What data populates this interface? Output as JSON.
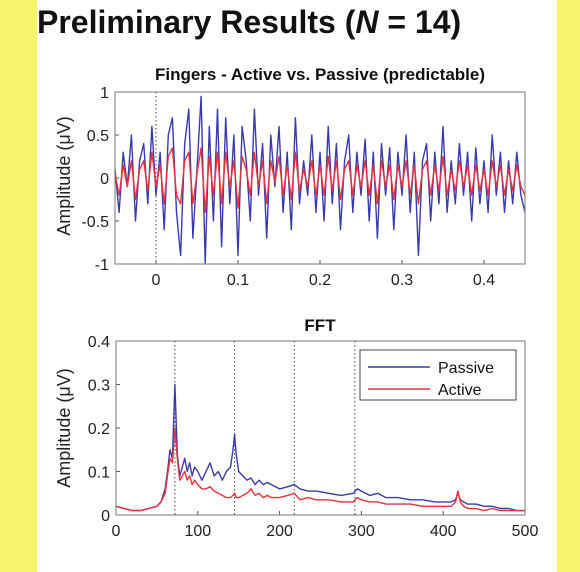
{
  "slide": {
    "title_prefix": "Preliminary Results (",
    "title_var": "N",
    "title_suffix": " = 14)"
  },
  "colors": {
    "page_background": "#f8f36a",
    "panel_background": "#ffffff",
    "passive": "#3a3ab0",
    "active": "#e8313a"
  },
  "chart_data": [
    {
      "type": "line",
      "title": "Fingers - Active vs. Passive (predictable)",
      "xlabel": "",
      "ylabel": "Amplitude (μV)",
      "xlim": [
        -0.05,
        0.45
      ],
      "ylim": [
        -1,
        1
      ],
      "xticks": [
        0,
        0.1,
        0.2,
        0.3,
        0.4
      ],
      "xtick_labels": [
        "0",
        "0.1",
        "0.2",
        "0.3",
        "0.4"
      ],
      "yticks": [
        -1,
        -0.5,
        0,
        0.5,
        1
      ],
      "ytick_labels": [
        "-1",
        "-0.5",
        "0",
        "0.5",
        "1"
      ],
      "reference_lines": [
        0
      ],
      "grid": false,
      "legend": false,
      "series": [
        {
          "color": "#3a3ab0",
          "x": [
            -0.05,
            -0.045,
            -0.04,
            -0.035,
            -0.03,
            -0.025,
            -0.02,
            -0.015,
            -0.01,
            -0.005,
            0,
            0.005,
            0.01,
            0.015,
            0.02,
            0.025,
            0.03,
            0.035,
            0.04,
            0.045,
            0.05,
            0.055,
            0.06,
            0.065,
            0.07,
            0.075,
            0.08,
            0.085,
            0.09,
            0.095,
            0.1,
            0.105,
            0.11,
            0.115,
            0.12,
            0.125,
            0.13,
            0.135,
            0.14,
            0.145,
            0.15,
            0.155,
            0.16,
            0.165,
            0.17,
            0.175,
            0.18,
            0.185,
            0.19,
            0.195,
            0.2,
            0.205,
            0.21,
            0.215,
            0.22,
            0.225,
            0.23,
            0.235,
            0.24,
            0.245,
            0.25,
            0.255,
            0.26,
            0.265,
            0.27,
            0.275,
            0.28,
            0.285,
            0.29,
            0.295,
            0.3,
            0.305,
            0.31,
            0.315,
            0.32,
            0.325,
            0.33,
            0.335,
            0.34,
            0.345,
            0.35,
            0.355,
            0.36,
            0.365,
            0.37,
            0.375,
            0.38,
            0.385,
            0.39,
            0.395,
            0.4,
            0.405,
            0.41,
            0.415,
            0.42,
            0.425,
            0.43,
            0.435,
            0.44,
            0.445,
            0.45
          ],
          "y": [
            0.1,
            -0.4,
            0.3,
            -0.1,
            0.5,
            -0.5,
            0.2,
            0.4,
            -0.3,
            0.6,
            -0.2,
            0.3,
            -0.6,
            0.5,
            0.7,
            -0.4,
            -0.9,
            0.4,
            0.8,
            -0.7,
            0.1,
            0.95,
            -0.99,
            0.6,
            -0.5,
            0.8,
            -0.8,
            0.7,
            -0.3,
            0.5,
            -0.9,
            0.6,
            0.2,
            -0.5,
            0.8,
            -0.2,
            0.4,
            -0.7,
            0.5,
            -0.1,
            0.6,
            -0.4,
            0.3,
            -0.6,
            0.7,
            -0.3,
            0.2,
            -0.2,
            0.5,
            -0.4,
            0.3,
            -0.5,
            0.6,
            -0.3,
            0.4,
            -0.6,
            0.2,
            0.5,
            -0.4,
            0.3,
            -0.2,
            0.45,
            -0.5,
            0.3,
            -0.7,
            0.4,
            -0.2,
            0.35,
            -0.6,
            0.3,
            -0.2,
            0.5,
            -0.4,
            0.3,
            -0.9,
            0.2,
            0.4,
            -0.5,
            0.3,
            -0.3,
            0.6,
            -0.4,
            0.2,
            -0.3,
            0.4,
            -0.2,
            0.3,
            -0.5,
            0.35,
            -0.3,
            0.2,
            -0.4,
            0.5,
            -0.2,
            0.3,
            -0.4,
            0.2,
            -0.3,
            0.3,
            -0.2,
            -0.4
          ]
        },
        {
          "color": "#e8313a",
          "x": [
            -0.05,
            -0.045,
            -0.04,
            -0.035,
            -0.03,
            -0.025,
            -0.02,
            -0.015,
            -0.01,
            -0.005,
            0,
            0.005,
            0.01,
            0.015,
            0.02,
            0.025,
            0.03,
            0.035,
            0.04,
            0.045,
            0.05,
            0.055,
            0.06,
            0.065,
            0.07,
            0.075,
            0.08,
            0.085,
            0.09,
            0.095,
            0.1,
            0.105,
            0.11,
            0.115,
            0.12,
            0.125,
            0.13,
            0.135,
            0.14,
            0.145,
            0.15,
            0.155,
            0.16,
            0.165,
            0.17,
            0.175,
            0.18,
            0.185,
            0.19,
            0.195,
            0.2,
            0.205,
            0.21,
            0.215,
            0.22,
            0.225,
            0.23,
            0.235,
            0.24,
            0.245,
            0.25,
            0.255,
            0.26,
            0.265,
            0.27,
            0.275,
            0.28,
            0.285,
            0.29,
            0.295,
            0.3,
            0.305,
            0.31,
            0.315,
            0.32,
            0.325,
            0.33,
            0.335,
            0.34,
            0.345,
            0.35,
            0.355,
            0.36,
            0.365,
            0.37,
            0.375,
            0.38,
            0.385,
            0.39,
            0.395,
            0.4,
            0.405,
            0.41,
            0.415,
            0.42,
            0.425,
            0.43,
            0.435,
            0.44,
            0.445,
            0.45
          ],
          "y": [
            0.05,
            -0.2,
            0.15,
            -0.1,
            0.2,
            -0.25,
            0.1,
            0.2,
            -0.15,
            0.3,
            -0.1,
            0.15,
            -0.3,
            0.25,
            0.35,
            -0.2,
            -0.3,
            0.2,
            0.3,
            -0.3,
            0.05,
            0.35,
            -0.4,
            0.25,
            -0.2,
            0.3,
            -0.3,
            0.3,
            -0.1,
            0.2,
            -0.35,
            0.25,
            0.1,
            -0.2,
            0.3,
            -0.1,
            0.2,
            -0.3,
            0.2,
            -0.05,
            0.25,
            -0.2,
            0.15,
            -0.25,
            0.3,
            -0.15,
            0.1,
            -0.1,
            0.2,
            -0.2,
            0.15,
            -0.2,
            0.25,
            -0.15,
            0.2,
            -0.25,
            0.1,
            0.2,
            -0.2,
            0.15,
            -0.1,
            0.2,
            -0.2,
            0.15,
            -0.3,
            0.2,
            -0.1,
            0.15,
            -0.25,
            0.15,
            -0.1,
            0.2,
            -0.2,
            0.15,
            -0.3,
            0.1,
            0.2,
            -0.2,
            0.15,
            -0.15,
            0.25,
            -0.2,
            0.1,
            -0.15,
            0.2,
            -0.1,
            0.15,
            -0.2,
            0.15,
            -0.15,
            0.1,
            -0.2,
            0.2,
            -0.1,
            0.15,
            -0.2,
            0.1,
            -0.15,
            0.15,
            -0.1,
            -0.2
          ]
        }
      ]
    },
    {
      "type": "line",
      "title": "FFT",
      "xlabel": "",
      "ylabel": "Amplitude (μV)",
      "xlim": [
        0,
        500
      ],
      "ylim": [
        0,
        0.4
      ],
      "xticks": [
        0,
        100,
        200,
        300,
        400,
        500
      ],
      "xtick_labels": [
        "0",
        "100",
        "200",
        "300",
        "400",
        "500"
      ],
      "yticks": [
        0,
        0.1,
        0.2,
        0.3,
        0.4
      ],
      "ytick_labels": [
        "0",
        "0.1",
        "0.2",
        "0.3",
        "0.4"
      ],
      "reference_lines": [
        72,
        145,
        218,
        292
      ],
      "grid": false,
      "legend": "top-right",
      "series": [
        {
          "name": "Passive",
          "color": "#3a3ab0",
          "x": [
            0,
            10,
            20,
            30,
            40,
            50,
            55,
            60,
            63,
            66,
            69,
            72,
            75,
            78,
            81,
            84,
            87,
            90,
            93,
            96,
            100,
            105,
            110,
            115,
            120,
            125,
            130,
            135,
            140,
            143,
            145,
            147,
            150,
            155,
            160,
            165,
            170,
            175,
            180,
            185,
            190,
            200,
            210,
            218,
            225,
            235,
            245,
            260,
            275,
            290,
            295,
            300,
            310,
            320,
            330,
            345,
            360,
            375,
            390,
            400,
            410,
            415,
            418,
            421,
            425,
            430,
            440,
            450,
            460,
            470,
            480,
            490,
            500
          ],
          "y": [
            0.02,
            0.015,
            0.01,
            0.01,
            0.015,
            0.02,
            0.03,
            0.06,
            0.1,
            0.15,
            0.13,
            0.3,
            0.14,
            0.09,
            0.11,
            0.13,
            0.1,
            0.12,
            0.09,
            0.11,
            0.1,
            0.08,
            0.1,
            0.12,
            0.09,
            0.1,
            0.08,
            0.1,
            0.11,
            0.15,
            0.185,
            0.14,
            0.1,
            0.09,
            0.08,
            0.085,
            0.07,
            0.08,
            0.07,
            0.075,
            0.07,
            0.06,
            0.065,
            0.07,
            0.06,
            0.055,
            0.055,
            0.05,
            0.045,
            0.05,
            0.06,
            0.055,
            0.045,
            0.05,
            0.04,
            0.04,
            0.035,
            0.035,
            0.03,
            0.03,
            0.03,
            0.035,
            0.05,
            0.035,
            0.03,
            0.025,
            0.025,
            0.02,
            0.02,
            0.015,
            0.015,
            0.01,
            0.01
          ]
        },
        {
          "name": "Active",
          "color": "#e8313a",
          "x": [
            0,
            10,
            20,
            30,
            40,
            50,
            55,
            60,
            63,
            66,
            69,
            72,
            75,
            78,
            81,
            84,
            87,
            90,
            93,
            96,
            100,
            105,
            110,
            115,
            120,
            125,
            130,
            135,
            140,
            143,
            145,
            147,
            150,
            155,
            160,
            165,
            170,
            175,
            180,
            185,
            190,
            200,
            210,
            218,
            225,
            235,
            245,
            260,
            275,
            290,
            295,
            300,
            310,
            320,
            330,
            345,
            360,
            375,
            390,
            400,
            410,
            415,
            418,
            421,
            425,
            430,
            440,
            450,
            460,
            470,
            480,
            490,
            500
          ],
          "y": [
            0.02,
            0.015,
            0.01,
            0.01,
            0.015,
            0.02,
            0.03,
            0.05,
            0.09,
            0.13,
            0.12,
            0.2,
            0.13,
            0.08,
            0.09,
            0.1,
            0.08,
            0.09,
            0.07,
            0.08,
            0.07,
            0.06,
            0.06,
            0.065,
            0.055,
            0.05,
            0.045,
            0.04,
            0.04,
            0.045,
            0.05,
            0.04,
            0.04,
            0.045,
            0.05,
            0.06,
            0.045,
            0.05,
            0.04,
            0.045,
            0.04,
            0.04,
            0.045,
            0.05,
            0.035,
            0.04,
            0.035,
            0.035,
            0.03,
            0.03,
            0.04,
            0.035,
            0.03,
            0.03,
            0.025,
            0.025,
            0.025,
            0.02,
            0.02,
            0.02,
            0.02,
            0.03,
            0.055,
            0.03,
            0.02,
            0.015,
            0.015,
            0.01,
            0.015,
            0.01,
            0.01,
            0.01,
            0.01
          ]
        }
      ]
    }
  ]
}
